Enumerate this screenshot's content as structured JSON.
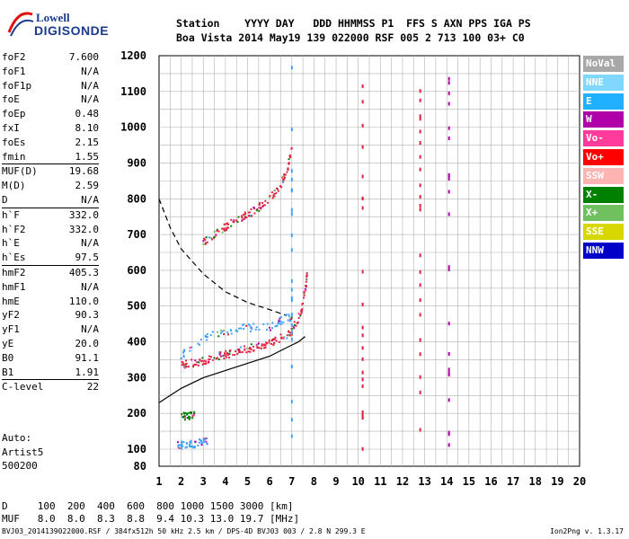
{
  "logo": {
    "top": "Lowell",
    "bottom": "DIGISONDE"
  },
  "header": {
    "row1": "Station    YYYY DAY   DDD HHMMSS P1  FFS S AXN PPS IGA PS",
    "row2": "Boa Vista 2014 May19 139 022000 RSF 005 2 713 100 03+ C0"
  },
  "params": [
    {
      "name": "foF2",
      "value": "7.600",
      "sep": false
    },
    {
      "name": "foF1",
      "value": "N/A",
      "sep": false
    },
    {
      "name": "foF1p",
      "value": "N/A",
      "sep": false
    },
    {
      "name": "foE",
      "value": "N/A",
      "sep": false
    },
    {
      "name": "foEp",
      "value": "0.48",
      "sep": false
    },
    {
      "name": "fxI",
      "value": "8.10",
      "sep": false
    },
    {
      "name": "foEs",
      "value": "2.15",
      "sep": false
    },
    {
      "name": "fmin",
      "value": "1.55",
      "sep": false
    },
    {
      "name": "MUF(D)",
      "value": "19.68",
      "sep": true
    },
    {
      "name": "M(D)",
      "value": "2.59",
      "sep": false
    },
    {
      "name": "D",
      "value": "N/A",
      "sep": false
    },
    {
      "name": "h`F",
      "value": "332.0",
      "sep": true
    },
    {
      "name": "h`F2",
      "value": "332.0",
      "sep": false
    },
    {
      "name": "h`E",
      "value": "N/A",
      "sep": false
    },
    {
      "name": "h`Es",
      "value": "97.5",
      "sep": false
    },
    {
      "name": "hmF2",
      "value": "405.3",
      "sep": true
    },
    {
      "name": "hmF1",
      "value": "N/A",
      "sep": false
    },
    {
      "name": "hmE",
      "value": "110.0",
      "sep": false
    },
    {
      "name": "yF2",
      "value": "90.3",
      "sep": false
    },
    {
      "name": "yF1",
      "value": "N/A",
      "sep": false
    },
    {
      "name": "yE",
      "value": "20.0",
      "sep": false
    },
    {
      "name": "B0",
      "value": "91.1",
      "sep": false
    },
    {
      "name": "B1",
      "value": "1.91",
      "sep": false
    },
    {
      "name": "C-level",
      "value": "22",
      "sep": true
    }
  ],
  "auto": [
    "Auto:",
    "Artist5",
    "500200"
  ],
  "legend": [
    {
      "label": "NoVal",
      "color": "#a8a8a8"
    },
    {
      "label": "NNE",
      "color": "#80d8ff"
    },
    {
      "label": "E",
      "color": "#20b0ff"
    },
    {
      "label": "W",
      "color": "#b000a8"
    },
    {
      "label": "Vo-",
      "color": "#ff3c9c"
    },
    {
      "label": "Vo+",
      "color": "#ff0000"
    },
    {
      "label": "SSW",
      "color": "#ffb4b4"
    },
    {
      "label": "X-",
      "color": "#008000"
    },
    {
      "label": "X+",
      "color": "#70c060"
    },
    {
      "label": "SSE",
      "color": "#d8d800"
    },
    {
      "label": "NNW",
      "color": "#0000c8"
    }
  ],
  "bottom": {
    "d_row": "D     100  200  400  600  800 1000 1500 3000 [km]",
    "muf_row": "MUF   8.0  8.0  8.3  8.8  9.4 10.3 13.0 19.7 [MHz]"
  },
  "footer": {
    "left": "BVJ03_2014139022000.RSF / 384fx512h 50 kHz 2.5 km / DPS-4D BVJ03 003 / 2.8 N 299.3 E",
    "right": "Ion2Png v. 1.3.17"
  },
  "chart_data": {
    "type": "scatter",
    "title": "",
    "xlabel": "",
    "ylabel": "",
    "xlim": [
      1,
      20
    ],
    "ylim": [
      80,
      1200
    ],
    "x_ticks": [
      1,
      2,
      3,
      4,
      5,
      6,
      7,
      8,
      9,
      10,
      11,
      12,
      13,
      14,
      15,
      16,
      17,
      18,
      19,
      20
    ],
    "y_ticks": [
      80,
      100,
      200,
      300,
      400,
      500,
      600,
      700,
      800,
      900,
      1000,
      1100,
      1200
    ],
    "grid": true,
    "legend_position": "right",
    "traces": [
      {
        "name": "F2 O-trace",
        "color": "#e0203c",
        "points": [
          [
            2.0,
            335
          ],
          [
            2.5,
            340
          ],
          [
            3.0,
            348
          ],
          [
            3.5,
            356
          ],
          [
            4.0,
            364
          ],
          [
            4.5,
            372
          ],
          [
            5.0,
            380
          ],
          [
            5.5,
            388
          ],
          [
            6.0,
            396
          ],
          [
            6.5,
            410
          ],
          [
            7.0,
            430
          ],
          [
            7.4,
            480
          ],
          [
            7.6,
            540
          ],
          [
            7.7,
            590
          ]
        ]
      },
      {
        "name": "F2 cloud",
        "color": "#40a0ff",
        "points": [
          [
            2.0,
            360
          ],
          [
            3.0,
            410
          ],
          [
            4.0,
            430
          ],
          [
            5.0,
            440
          ],
          [
            6.0,
            440
          ],
          [
            6.5,
            460
          ],
          [
            7.0,
            470
          ]
        ]
      },
      {
        "name": "F2 multi-hop",
        "color": "#e0203c",
        "points": [
          [
            3.0,
            680
          ],
          [
            3.5,
            700
          ],
          [
            4.0,
            720
          ],
          [
            4.5,
            740
          ],
          [
            5.0,
            755
          ],
          [
            5.5,
            775
          ],
          [
            6.0,
            800
          ],
          [
            6.5,
            840
          ],
          [
            6.8,
            880
          ],
          [
            7.0,
            940
          ]
        ]
      },
      {
        "name": "Es",
        "color": "#40a0ff",
        "points": [
          [
            1.8,
            110
          ],
          [
            2.2,
            112
          ],
          [
            2.6,
            115
          ],
          [
            3.0,
            120
          ],
          [
            3.2,
            125
          ]
        ]
      },
      {
        "name": "Es high",
        "color": "#008000",
        "points": [
          [
            2.0,
            190
          ],
          [
            2.3,
            192
          ],
          [
            2.6,
            195
          ]
        ]
      }
    ],
    "profile_solid": [
      [
        1.0,
        230
      ],
      [
        1.5,
        250
      ],
      [
        2.0,
        270
      ],
      [
        3.0,
        300
      ],
      [
        4.0,
        320
      ],
      [
        5.0,
        340
      ],
      [
        6.0,
        360
      ],
      [
        6.8,
        385
      ],
      [
        7.3,
        400
      ],
      [
        7.6,
        415
      ]
    ],
    "profile_dashed": [
      [
        1.0,
        800
      ],
      [
        1.5,
        720
      ],
      [
        2.0,
        660
      ],
      [
        3.0,
        590
      ],
      [
        4.0,
        540
      ],
      [
        5.0,
        510
      ],
      [
        6.0,
        490
      ],
      [
        6.7,
        475
      ]
    ]
  }
}
